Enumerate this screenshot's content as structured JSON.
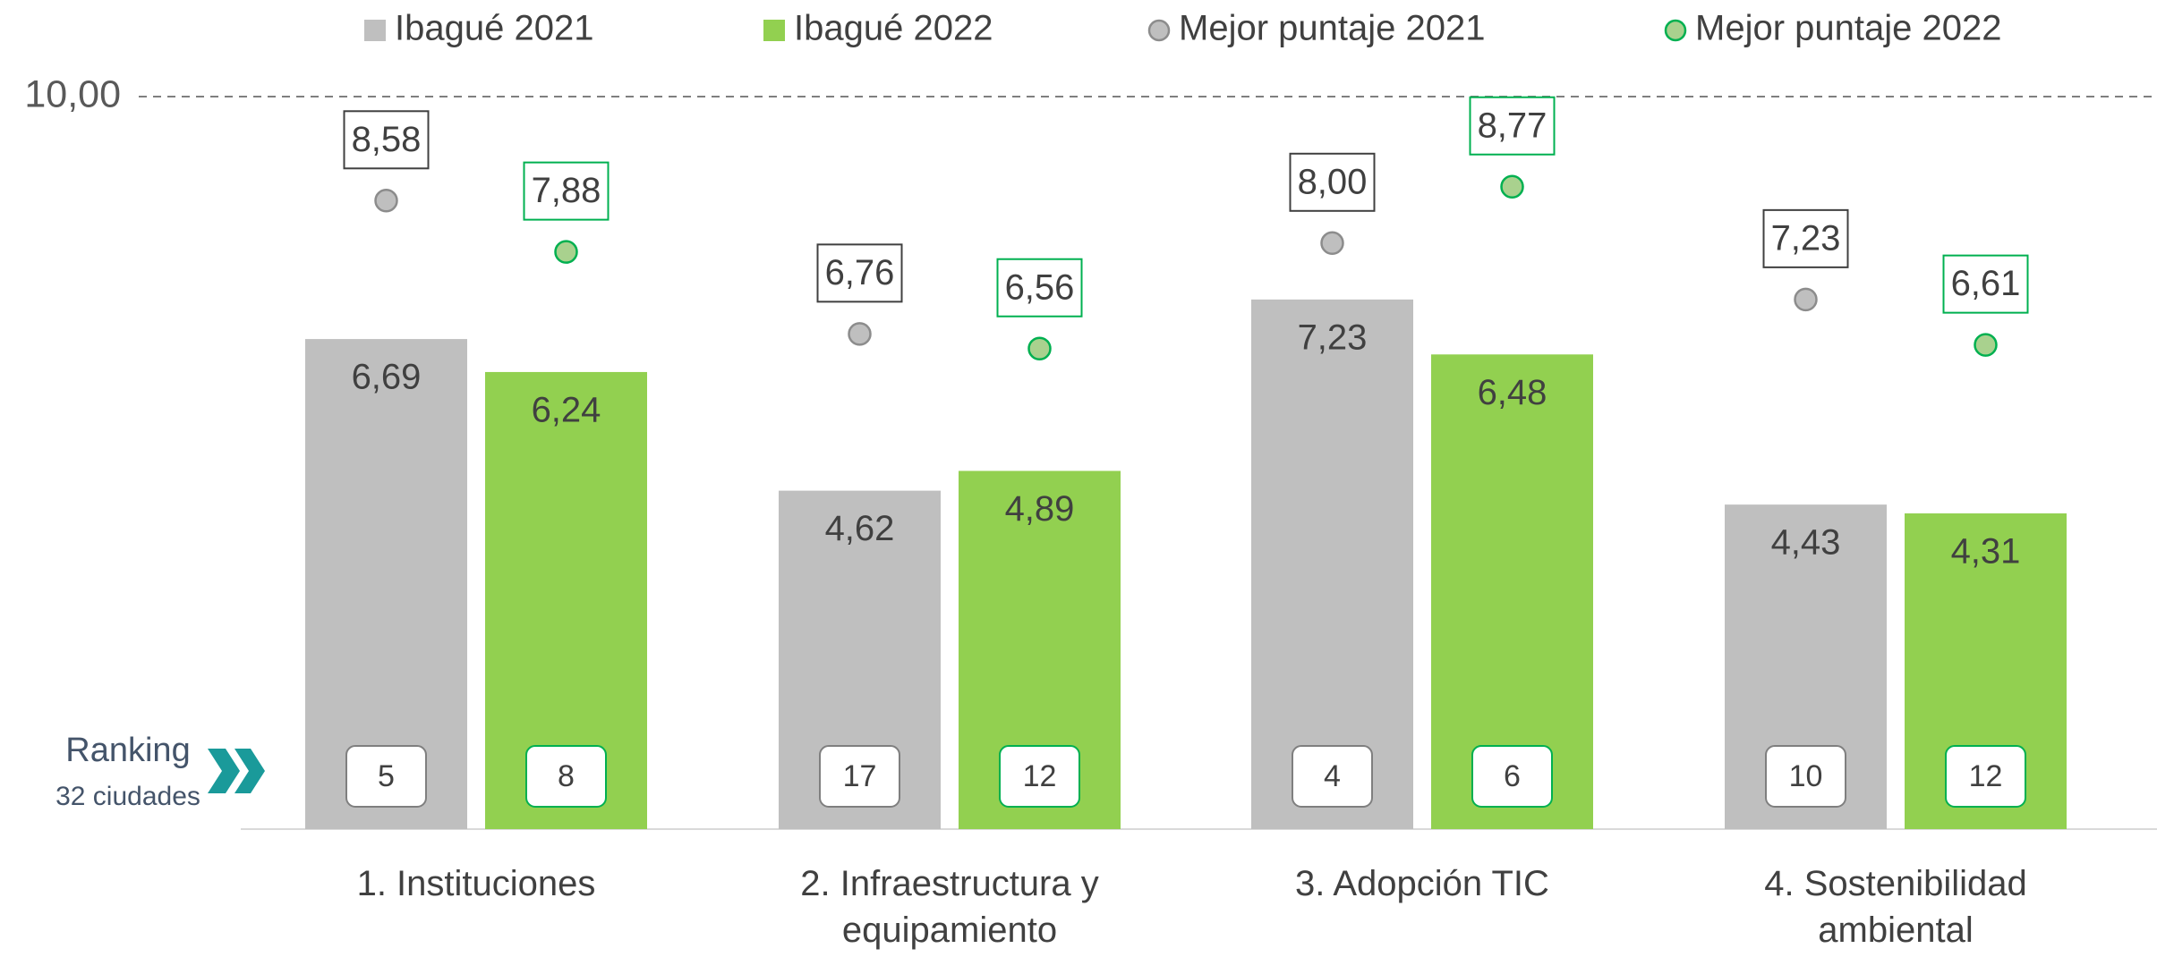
{
  "chart_data": {
    "type": "bar",
    "categories": [
      "1. Instituciones",
      "2. Infraestructura y equipamiento",
      "3. Adopción TIC",
      "4. Sostenibilidad ambiental"
    ],
    "series": [
      {
        "name": "Ibagué 2021",
        "color": "#bfbfbf",
        "values": [
          6.69,
          4.62,
          7.23,
          4.43
        ],
        "value_labels": [
          "6,69",
          "4,62",
          "7,23",
          "4,43"
        ],
        "ranks": [
          5,
          17,
          4,
          10
        ]
      },
      {
        "name": "Ibagué 2022",
        "color": "#92d050",
        "values": [
          6.24,
          4.89,
          6.48,
          4.31
        ],
        "value_labels": [
          "6,24",
          "4,89",
          "6,48",
          "4,31"
        ],
        "ranks": [
          8,
          12,
          6,
          12
        ]
      },
      {
        "name": "Mejor puntaje 2021",
        "type": "scatter",
        "color": "#bfbfbf",
        "values": [
          8.58,
          6.76,
          8.0,
          7.23
        ],
        "value_labels": [
          "8,58",
          "6,76",
          "8,00",
          "7,23"
        ]
      },
      {
        "name": "Mejor puntaje 2022",
        "type": "scatter",
        "color": "#a9d18e",
        "values": [
          7.88,
          6.56,
          8.77,
          6.61
        ],
        "value_labels": [
          "7,88",
          "6,56",
          "8,77",
          "6,61"
        ]
      }
    ],
    "ranking_label": "Ranking",
    "ranking_sublabel": "32 ciudades",
    "ylim": [
      0,
      10
    ],
    "yticks": [
      {
        "value": 10,
        "label": "10,00"
      }
    ]
  }
}
